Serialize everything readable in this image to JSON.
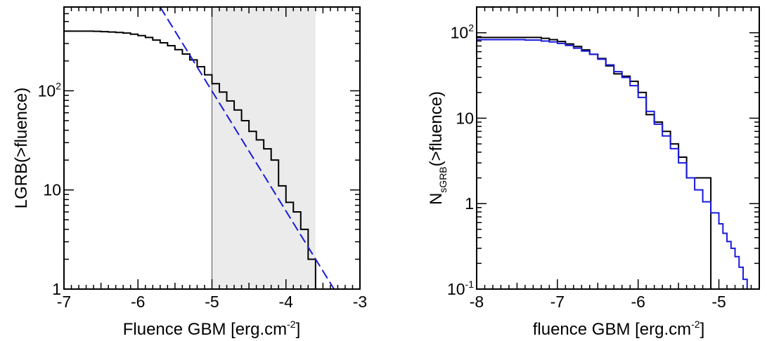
{
  "chart_data": [
    {
      "type": "line",
      "xlabel_main": "Fluence GBM [erg.cm",
      "xlabel_sup": "-2",
      "xlabel_end": "]",
      "ylabel": "LGRB(>fluence)",
      "xlim": [
        -7,
        -3
      ],
      "ylim": [
        1,
        700
      ],
      "yscale": "log",
      "x_ticks": [
        "-7",
        "-6",
        "-5",
        "-4",
        "-3"
      ],
      "y_ticks": [
        {
          "value": 1,
          "base": "1",
          "exp": ""
        },
        {
          "value": 10,
          "base": "10",
          "exp": ""
        },
        {
          "value": 100,
          "base": "10",
          "exp": "2"
        }
      ],
      "shaded_region": [
        -5,
        -3.6
      ],
      "series": [
        {
          "style": "step",
          "color": "#000000",
          "points": [
            [
              -7.0,
              400
            ],
            [
              -6.6,
              398
            ],
            [
              -6.5,
              395
            ],
            [
              -6.4,
              392
            ],
            [
              -6.3,
              388
            ],
            [
              -6.2,
              382
            ],
            [
              -6.1,
              372
            ],
            [
              -6.0,
              360
            ],
            [
              -5.9,
              345
            ],
            [
              -5.8,
              325
            ],
            [
              -5.7,
              305
            ],
            [
              -5.6,
              285
            ],
            [
              -5.5,
              260
            ],
            [
              -5.4,
              235
            ],
            [
              -5.3,
              205
            ],
            [
              -5.2,
              175
            ],
            [
              -5.1,
              145
            ],
            [
              -5.0,
              118
            ],
            [
              -4.9,
              97
            ],
            [
              -4.8,
              79
            ],
            [
              -4.7,
              64
            ],
            [
              -4.6,
              50
            ],
            [
              -4.5,
              39
            ],
            [
              -4.4,
              32
            ],
            [
              -4.3,
              26
            ],
            [
              -4.2,
              20
            ],
            [
              -4.1,
              11
            ],
            [
              -4.0,
              7.5
            ],
            [
              -3.9,
              6.0
            ],
            [
              -3.8,
              4.0
            ],
            [
              -3.7,
              2.0
            ],
            [
              -3.6,
              1.0
            ],
            [
              -3.0,
              1.0
            ]
          ]
        },
        {
          "style": "dashed",
          "color": "#1a1adf",
          "points": [
            [
              -5.7,
              700
            ],
            [
              -3.35,
              1.0
            ],
            [
              -3.0,
              1.0
            ]
          ]
        }
      ]
    },
    {
      "type": "line",
      "xlabel_main": "fluence GBM [erg.cm",
      "xlabel_sup": "-2",
      "xlabel_end": "]",
      "ylabel_main": "N",
      "ylabel_sub": "sGRB",
      "ylabel_end": "(>fluence)",
      "xlim": [
        -8,
        -4.5
      ],
      "ylim": [
        0.1,
        200
      ],
      "yscale": "log",
      "x_ticks": [
        "-8",
        "-7",
        "-6",
        "-5"
      ],
      "y_ticks": [
        {
          "value": 0.1,
          "base": "10",
          "exp": "-1"
        },
        {
          "value": 1,
          "base": "1",
          "exp": ""
        },
        {
          "value": 10,
          "base": "10",
          "exp": ""
        },
        {
          "value": 100,
          "base": "10",
          "exp": "2"
        }
      ],
      "series": [
        {
          "style": "step",
          "color": "#000000",
          "points": [
            [
              -8.0,
              88
            ],
            [
              -7.2,
              86
            ],
            [
              -7.1,
              83
            ],
            [
              -7.0,
              79
            ],
            [
              -6.9,
              74
            ],
            [
              -6.8,
              69
            ],
            [
              -6.7,
              63
            ],
            [
              -6.6,
              56
            ],
            [
              -6.5,
              50
            ],
            [
              -6.4,
              41
            ],
            [
              -6.3,
              33
            ],
            [
              -6.2,
              31
            ],
            [
              -6.1,
              27
            ],
            [
              -6.0,
              20
            ],
            [
              -5.9,
              11
            ],
            [
              -5.8,
              9
            ],
            [
              -5.7,
              7
            ],
            [
              -5.6,
              5
            ],
            [
              -5.5,
              3.5
            ],
            [
              -5.4,
              2.0
            ],
            [
              -5.3,
              2.0
            ],
            [
              -5.2,
              2.0
            ],
            [
              -5.1,
              0.1
            ]
          ]
        },
        {
          "style": "step",
          "color": "#1a1adf",
          "points": [
            [
              -8.0,
              83
            ],
            [
              -7.4,
              82
            ],
            [
              -7.2,
              80
            ],
            [
              -7.1,
              78
            ],
            [
              -7.0,
              75
            ],
            [
              -6.9,
              71
            ],
            [
              -6.8,
              66
            ],
            [
              -6.7,
              61
            ],
            [
              -6.6,
              56
            ],
            [
              -6.5,
              49
            ],
            [
              -6.4,
              42
            ],
            [
              -6.3,
              35
            ],
            [
              -6.2,
              30
            ],
            [
              -6.1,
              24
            ],
            [
              -6.0,
              17.5
            ],
            [
              -5.9,
              12
            ],
            [
              -5.8,
              8.5
            ],
            [
              -5.7,
              6.2
            ],
            [
              -5.6,
              4.4
            ],
            [
              -5.5,
              3.0
            ],
            [
              -5.4,
              2.0
            ],
            [
              -5.3,
              1.45
            ],
            [
              -5.2,
              1.05
            ],
            [
              -5.1,
              0.78
            ],
            [
              -5.0,
              0.58
            ],
            [
              -4.95,
              0.45
            ],
            [
              -4.9,
              0.36
            ],
            [
              -4.85,
              0.3
            ],
            [
              -4.8,
              0.24
            ],
            [
              -4.75,
              0.18
            ],
            [
              -4.7,
              0.13
            ],
            [
              -4.65,
              0.1
            ]
          ]
        }
      ]
    }
  ]
}
